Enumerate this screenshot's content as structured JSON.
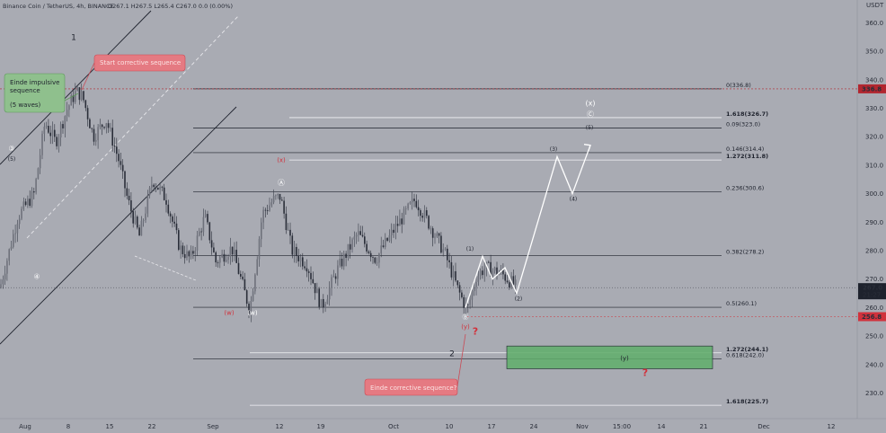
{
  "header": {
    "symbol": "Binance Coin / TetherUS, 4h, BINANCE",
    "ohlc": "O267.1  H267.5  L265.4  C267.0  0.0 (0.00%)"
  },
  "chart_data": {
    "type": "candlestick",
    "currency": "USDT",
    "y_range": [
      221,
      368
    ],
    "y_ticks": [
      230,
      240,
      250,
      260,
      270,
      280,
      290,
      300,
      310,
      320,
      330,
      340,
      350,
      360
    ],
    "x_tick_labels": [
      "Aug",
      "8",
      "15",
      "22",
      "Sep",
      "12",
      "19",
      "Oct",
      "10",
      "17",
      "24",
      "Nov",
      "15:00",
      "14",
      "21",
      "Dec",
      "12"
    ],
    "price_path": [
      [
        0,
        267
      ],
      [
        20,
        292
      ],
      [
        38,
        300
      ],
      [
        50,
        325
      ],
      [
        62,
        318
      ],
      [
        75,
        330
      ],
      [
        85,
        336
      ],
      [
        92,
        334
      ],
      [
        104,
        320
      ],
      [
        118,
        326
      ],
      [
        132,
        312
      ],
      [
        142,
        298
      ],
      [
        155,
        285
      ],
      [
        170,
        305
      ],
      [
        185,
        298
      ],
      [
        200,
        281
      ],
      [
        212,
        277
      ],
      [
        228,
        292
      ],
      [
        240,
        276
      ],
      [
        258,
        281
      ],
      [
        278,
        259
      ],
      [
        292,
        293
      ],
      [
        305,
        298
      ],
      [
        312,
        299
      ],
      [
        325,
        280
      ],
      [
        342,
        275
      ],
      [
        358,
        260
      ],
      [
        375,
        273
      ],
      [
        398,
        286
      ],
      [
        418,
        277
      ],
      [
        440,
        288
      ],
      [
        462,
        298
      ],
      [
        480,
        288
      ],
      [
        495,
        279
      ],
      [
        510,
        266
      ],
      [
        520,
        259
      ],
      [
        530,
        271
      ],
      [
        540,
        274
      ],
      [
        558,
        272
      ],
      [
        575,
        267
      ]
    ],
    "last_price": "267.0",
    "countdown": "21:27",
    "price_tags": [
      {
        "value": 336.8,
        "label": "336.8",
        "color": "#b2262f"
      },
      {
        "value": 256.8,
        "label": "256.8",
        "color": "#d1323c"
      }
    ],
    "fib_levels": [
      {
        "label": "0(336.8)",
        "value": 336.8
      },
      {
        "label": "0.09(323.0)",
        "value": 323.0
      },
      {
        "label": "0.146(314.4)",
        "value": 314.4
      },
      {
        "label": "0.236(300.6)",
        "value": 300.6
      },
      {
        "label": "0.382(278.2)",
        "value": 278.2
      },
      {
        "label": "0.5(260.1)",
        "value": 260.1
      },
      {
        "label": "0.618(242.0)",
        "value": 242.0
      }
    ],
    "ext_levels": [
      {
        "label": "1.618(326.7)",
        "value": 326.7
      },
      {
        "label": "1.272(311.8)",
        "value": 311.8
      },
      {
        "label": "1.272(244.1)",
        "value": 244.1
      },
      {
        "label": "1.618(225.7)",
        "value": 225.7
      }
    ],
    "projection_path": [
      [
        518,
        260
      ],
      [
        537,
        278
      ],
      [
        548,
        270
      ],
      [
        562,
        274
      ],
      [
        575,
        265
      ],
      [
        620,
        313
      ],
      [
        637,
        300
      ],
      [
        657,
        317
      ]
    ],
    "target_zone": {
      "from": 238.5,
      "to": 246.5,
      "label": "(y)"
    },
    "callouts": {
      "start": "Start corrective sequence",
      "einde_impulsive": [
        "Einde impulsive",
        "sequence",
        "",
        "(5 waves)"
      ],
      "einde_corrective": "Einde corrective sequence?"
    },
    "wave_labels": [
      {
        "text": "1",
        "x": 82,
        "v": 354,
        "color": "#1e222d",
        "size": 9
      },
      {
        "text": "2",
        "x": 503,
        "v": 243,
        "color": "#1e222d",
        "size": 9
      },
      {
        "text": "③",
        "x": 13,
        "v": 315,
        "color": "#ffffff",
        "size": 8
      },
      {
        "text": "(5)",
        "x": 13,
        "v": 311.5,
        "color": "#1e222d",
        "size": 6
      },
      {
        "text": "④",
        "x": 41,
        "v": 270,
        "color": "#ffffff",
        "size": 8
      },
      {
        "text": "(x)",
        "x": 313,
        "v": 311,
        "color": "#d1323c",
        "size": 7
      },
      {
        "text": "Ⓐ",
        "x": 313,
        "v": 303,
        "color": "#ffffff",
        "size": 8
      },
      {
        "text": "(w)",
        "x": 255,
        "v": 257.5,
        "color": "#d1323c",
        "size": 7
      },
      {
        "text": "(w)",
        "x": 281,
        "v": 257.5,
        "color": "#ffffff",
        "size": 7
      },
      {
        "text": "(1)",
        "x": 523,
        "v": 280,
        "color": "#1e222d",
        "size": 6
      },
      {
        "text": "(2)",
        "x": 577,
        "v": 262.5,
        "color": "#1e222d",
        "size": 6
      },
      {
        "text": "(3)",
        "x": 616,
        "v": 315,
        "color": "#1e222d",
        "size": 6
      },
      {
        "text": "(4)",
        "x": 638,
        "v": 297.5,
        "color": "#1e222d",
        "size": 6
      },
      {
        "text": "(5)",
        "x": 656,
        "v": 322.5,
        "color": "#1e222d",
        "size": 6
      },
      {
        "text": "Ⓒ",
        "x": 657,
        "v": 327,
        "color": "#ffffff",
        "size": 8
      },
      {
        "text": "(x)",
        "x": 657,
        "v": 331,
        "color": "#ffffff",
        "size": 8
      },
      {
        "text": "Ⓑ",
        "x": 518,
        "v": 256,
        "color": "#ffffff",
        "size": 7
      },
      {
        "text": "(y)",
        "x": 518,
        "v": 252.5,
        "color": "#d1323c",
        "size": 7
      },
      {
        "text": "?",
        "x": 529,
        "v": 250.5,
        "color": "#d1323c",
        "size": 11
      },
      {
        "text": "?",
        "x": 718,
        "v": 236,
        "color": "#d1323c",
        "size": 11
      }
    ]
  }
}
